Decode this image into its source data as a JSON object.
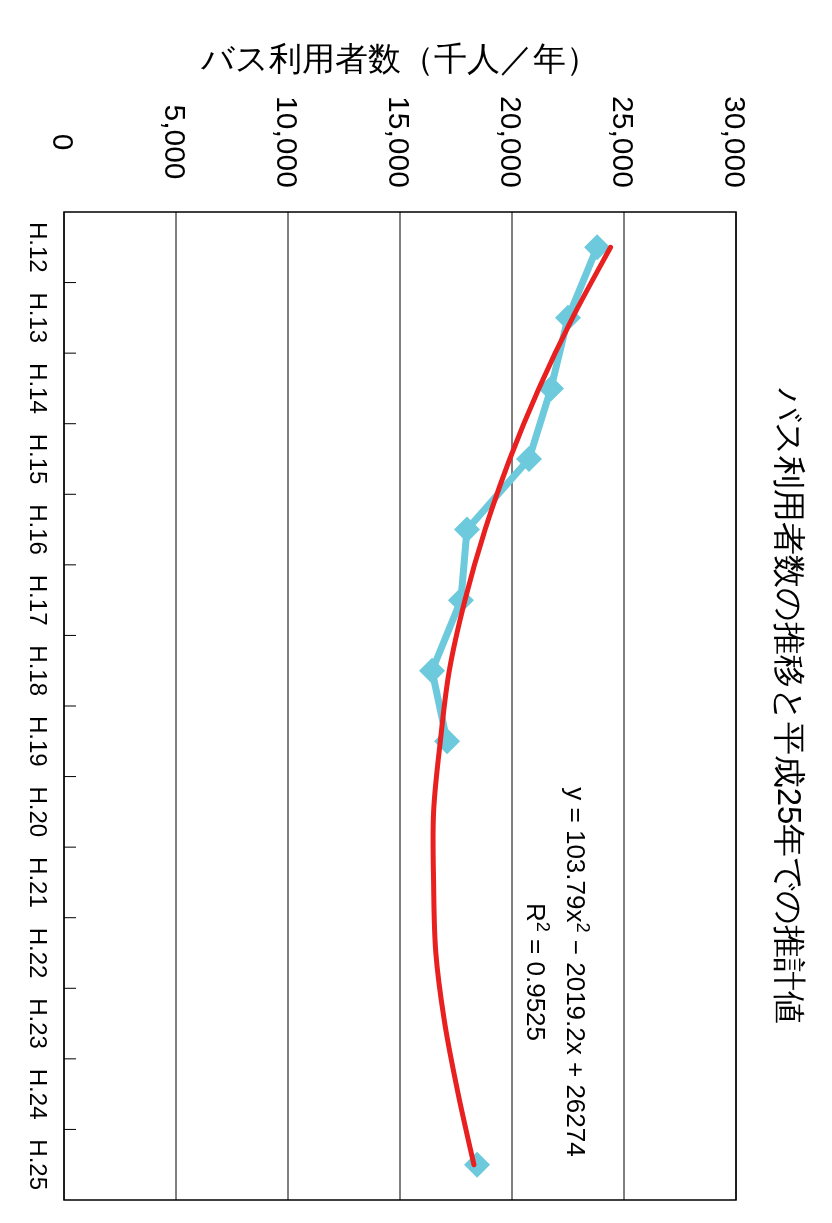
{
  "chart_data": {
    "type": "line",
    "title": "バス利用者数の推移と平成25年での推計値",
    "ylabel": "バス利用者数（千人／年）",
    "categories": [
      "H.12",
      "H.13",
      "H.14",
      "H.15",
      "H.16",
      "H.17",
      "H.18",
      "H.19",
      "H.20",
      "H.21",
      "H.22",
      "H.23",
      "H.24",
      "H.25"
    ],
    "series": [
      {
        "color": "#6dc9dc",
        "marker": "diamond",
        "values": [
          23800,
          22500,
          21740,
          20760,
          17990,
          17720,
          16430,
          17100,
          null,
          null,
          null,
          null,
          null,
          18440
        ]
      },
      {
        "color": "#e8201f",
        "marker": "none",
        "values": [
          24400,
          22700,
          21200,
          19900,
          18800,
          17900,
          17200,
          16800,
          16500,
          16500,
          16600,
          17000,
          17600,
          18300
        ]
      }
    ],
    "orientation": "horizontal",
    "xlim": [
      0,
      30000
    ],
    "xticks": [
      {
        "value": 0,
        "label": "0"
      },
      {
        "value": 5000,
        "label": "5,000"
      },
      {
        "value": 10000,
        "label": "10,000"
      },
      {
        "value": 15000,
        "label": "15,000"
      },
      {
        "value": 20000,
        "label": "20,000"
      },
      {
        "value": 25000,
        "label": "25,000"
      },
      {
        "value": 30000,
        "label": "30,000"
      }
    ],
    "grid": "x",
    "annotations": [
      "y = 103.79x$^{2}$ − 2019.2x + 26274",
      "R$^{2}$ = 0.9525"
    ]
  }
}
